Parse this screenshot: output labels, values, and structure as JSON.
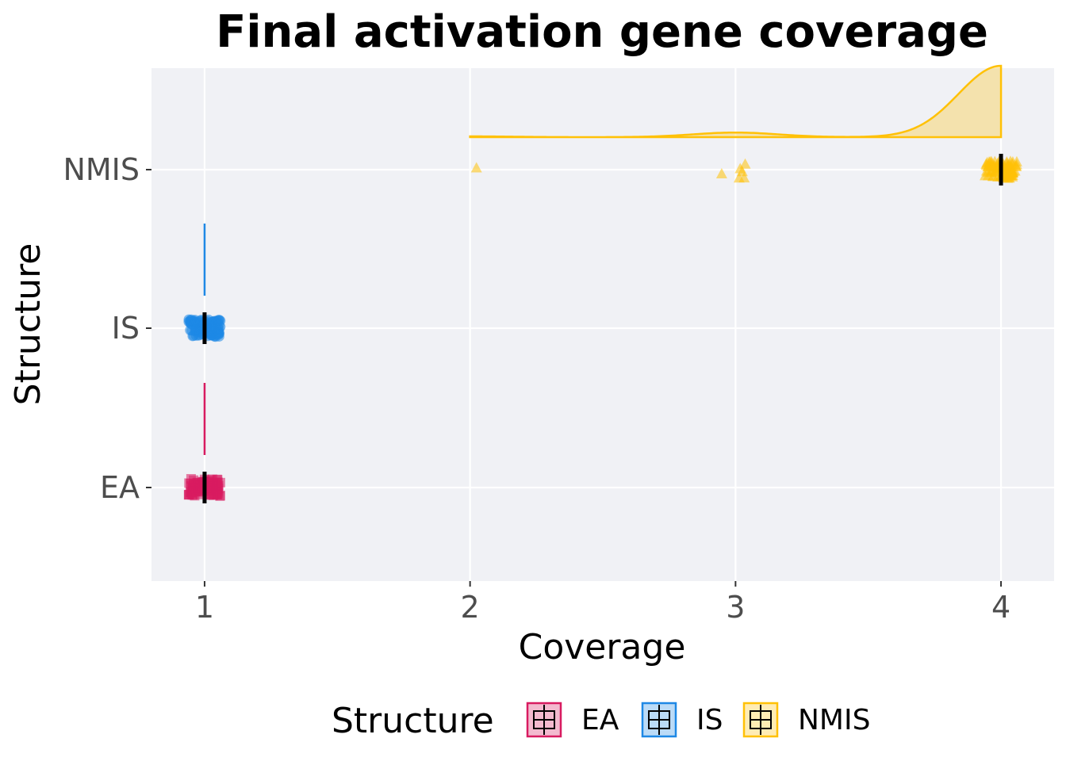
{
  "chart_data": {
    "type": "raincloud",
    "title": "Final activation gene coverage",
    "xlabel": "Coverage",
    "ylabel": "Structure",
    "xlim": [
      0.8,
      4.2
    ],
    "x_ticks": [
      "1",
      "2",
      "3",
      "4"
    ],
    "categories": [
      "EA",
      "IS",
      "NMIS"
    ],
    "legend": {
      "title": "Structure",
      "position": "bottom",
      "entries": [
        "EA",
        "IS",
        "NMIS"
      ]
    },
    "grid": true,
    "series": [
      {
        "name": "EA",
        "color": "#d81b60",
        "marker": "square",
        "median": 1,
        "q1": 1,
        "q3": 1,
        "min": 1,
        "max": 1,
        "points": [
          {
            "x": 1,
            "count": 100
          }
        ]
      },
      {
        "name": "IS",
        "color": "#1e88e5",
        "marker": "circle",
        "median": 1,
        "q1": 1,
        "q3": 1,
        "min": 1,
        "max": 1,
        "points": [
          {
            "x": 1,
            "count": 100
          }
        ]
      },
      {
        "name": "NMIS",
        "color": "#ffc107",
        "marker": "triangle",
        "median": 4,
        "q1": 4,
        "q3": 4,
        "min": 4,
        "max": 4,
        "points": [
          {
            "x": 2,
            "count": 1
          },
          {
            "x": 3,
            "count": 6
          },
          {
            "x": 4,
            "count": 93
          }
        ]
      }
    ]
  }
}
